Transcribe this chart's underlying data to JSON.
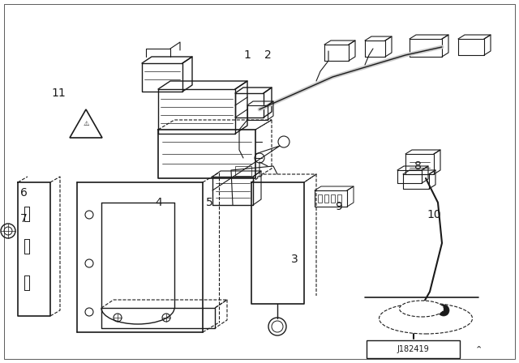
{
  "background_color": "#ffffff",
  "line_color": "#1a1a1a",
  "diagram_id": "J182419",
  "figsize": [
    6.4,
    4.48
  ],
  "dpi": 100,
  "border": [
    10,
    10,
    630,
    438
  ]
}
